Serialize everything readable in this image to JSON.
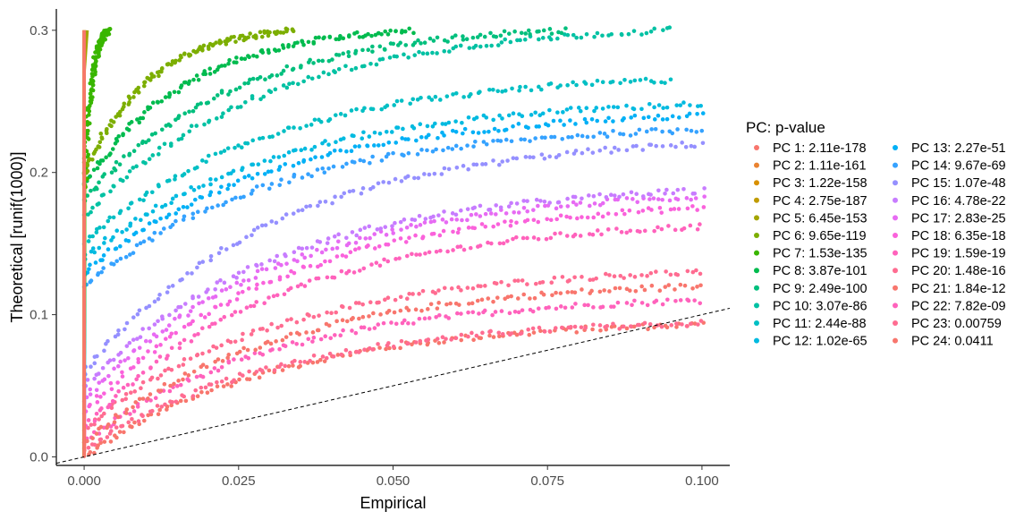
{
  "chart_data": {
    "type": "scatter",
    "title": "",
    "xlabel": "Empirical",
    "ylabel": "Theoretical [runif(1000)]",
    "xlim": [
      -0.0045,
      0.1045
    ],
    "ylim": [
      -0.006,
      0.315
    ],
    "x_ticks": [
      0.0,
      0.025,
      0.05,
      0.075,
      0.1
    ],
    "x_tick_labels": [
      "0.000",
      "0.025",
      "0.050",
      "0.075",
      "0.100"
    ],
    "y_ticks": [
      0.0,
      0.1,
      0.2,
      0.3
    ],
    "y_tick_labels": [
      "0.0",
      "0.1",
      "0.2",
      "0.3"
    ],
    "grid": false,
    "reference_line": {
      "style": "dashed",
      "slope": 1,
      "intercept": 0
    },
    "legend": {
      "title": "PC: p-value",
      "placement": "right",
      "columns": 2
    },
    "series": [
      {
        "name": "PC 1: 2.11e-178",
        "color": "#F8766D",
        "curve": {
          "type": "step",
          "xend": 0.0,
          "yend": 0.3
        }
      },
      {
        "name": "PC 2: 1.11e-161",
        "color": "#EA8331",
        "curve": {
          "type": "step",
          "xend": 0.0,
          "yend": 0.3
        }
      },
      {
        "name": "PC 3: 1.22e-158",
        "color": "#D89000",
        "curve": {
          "type": "step",
          "xend": 0.0,
          "yend": 0.3
        }
      },
      {
        "name": "PC 4: 2.75e-187",
        "color": "#C09B00",
        "curve": {
          "type": "step",
          "xend": 0.0,
          "yend": 0.3
        }
      },
      {
        "name": "PC 5: 6.45e-153",
        "color": "#A3A500",
        "curve": {
          "type": "step",
          "xend": 0.0005,
          "yend": 0.3
        }
      },
      {
        "name": "PC 6: 9.65e-119",
        "color": "#7CAE00",
        "curve": {
          "type": "concave",
          "y0": 0.2,
          "y1": 0.3,
          "xend": 0.034,
          "yend": 0.3
        }
      },
      {
        "name": "PC 7: 1.53e-135",
        "color": "#39B600",
        "curve": {
          "type": "concave",
          "y0": 0.19,
          "y1": 0.3,
          "xend": 0.004,
          "yend": 0.3
        }
      },
      {
        "name": "PC 8: 3.87e-101",
        "color": "#00BB4E",
        "curve": {
          "type": "concave",
          "y0": 0.19,
          "y1": 0.3,
          "xend": 0.053,
          "yend": 0.3
        }
      },
      {
        "name": "PC 9: 2.49e-100",
        "color": "#00BF7D",
        "curve": {
          "type": "concave",
          "y0": 0.18,
          "y1": 0.3,
          "xend": 0.078,
          "yend": 0.3
        }
      },
      {
        "name": "PC 10: 3.07e-86",
        "color": "#00C1A3",
        "curve": {
          "type": "concave",
          "y0": 0.17,
          "y1": 0.3,
          "xend": 0.095,
          "yend": 0.3
        }
      },
      {
        "name": "PC 11: 2.44e-88",
        "color": "#00BFC4",
        "curve": {
          "type": "concave",
          "y0": 0.15,
          "y1": 0.3,
          "xend": 0.095,
          "yend": 0.265
        }
      },
      {
        "name": "PC 12: 1.02e-65",
        "color": "#00BAE0",
        "curve": {
          "type": "concave",
          "y0": 0.14,
          "y1": 0.3,
          "xend": 0.1,
          "yend": 0.248
        }
      },
      {
        "name": "PC 13: 2.27e-51",
        "color": "#00B0F6",
        "curve": {
          "type": "concave",
          "y0": 0.13,
          "y1": 0.3,
          "xend": 0.1,
          "yend": 0.24
        }
      },
      {
        "name": "PC 14: 9.67e-69",
        "color": "#35A2FF",
        "curve": {
          "type": "concave",
          "y0": 0.12,
          "y1": 0.3,
          "xend": 0.1,
          "yend": 0.23
        }
      },
      {
        "name": "PC 15: 1.07e-48",
        "color": "#9590FF",
        "curve": {
          "type": "concave",
          "y0": 0.06,
          "y1": 0.3,
          "xend": 0.1,
          "yend": 0.22
        }
      },
      {
        "name": "PC 16: 4.78e-22",
        "color": "#C77CFF",
        "curve": {
          "type": "concave",
          "y0": 0.05,
          "y1": 0.28,
          "xend": 0.1,
          "yend": 0.187
        }
      },
      {
        "name": "PC 17: 2.83e-25",
        "color": "#E76BF3",
        "curve": {
          "type": "concave",
          "y0": 0.04,
          "y1": 0.27,
          "xend": 0.1,
          "yend": 0.183
        }
      },
      {
        "name": "PC 18: 6.35e-18",
        "color": "#FA62DB",
        "curve": {
          "type": "concave",
          "y0": 0.03,
          "y1": 0.25,
          "xend": 0.1,
          "yend": 0.175
        }
      },
      {
        "name": "PC 19: 1.59e-19",
        "color": "#FF62BC",
        "curve": {
          "type": "concave",
          "y0": 0.02,
          "y1": 0.24,
          "xend": 0.1,
          "yend": 0.162
        }
      },
      {
        "name": "PC 20: 1.48e-16",
        "color": "#FF6C91",
        "curve": {
          "type": "concave",
          "y0": 0.02,
          "y1": 0.22,
          "xend": 0.1,
          "yend": 0.13
        }
      },
      {
        "name": "PC 21: 1.84e-12",
        "color": "#F8766D",
        "curve": {
          "type": "concave",
          "y0": 0.01,
          "y1": 0.2,
          "xend": 0.1,
          "yend": 0.12
        }
      },
      {
        "name": "PC 22: 7.82e-09",
        "color": "#FF62BC",
        "curve": {
          "type": "concave",
          "y0": 0.01,
          "y1": 0.18,
          "xend": 0.1,
          "yend": 0.11
        }
      },
      {
        "name": "PC 23: 0.00759",
        "color": "#FF6C91",
        "curve": {
          "type": "concave",
          "y0": 0.005,
          "y1": 0.1,
          "xend": 0.1,
          "yend": 0.094
        }
      },
      {
        "name": "PC 24: 0.0411",
        "color": "#F8766D",
        "curve": {
          "type": "concave",
          "y0": 0.0,
          "y1": 0.08,
          "xend": 0.1,
          "yend": 0.093
        }
      }
    ]
  }
}
